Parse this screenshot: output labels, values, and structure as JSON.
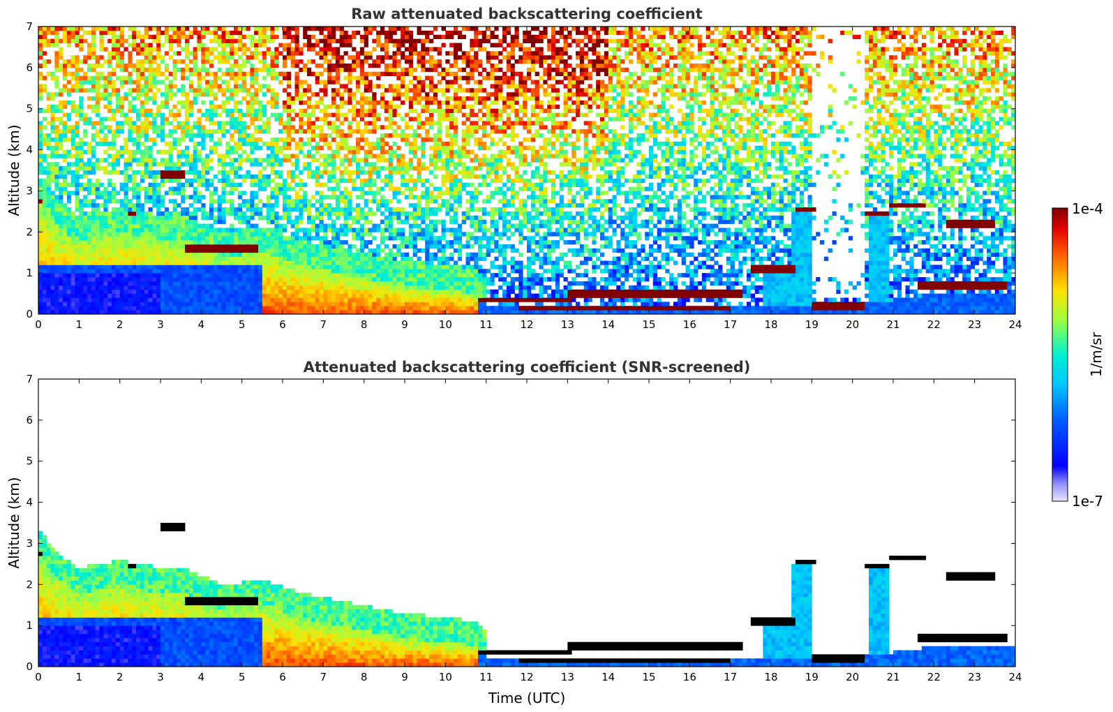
{
  "chart_data": [
    {
      "type": "heatmap",
      "title": "Raw attenuated backscattering coefficient",
      "xlabel": "",
      "ylabel": "Altitude (km)",
      "xlim": [
        0,
        24
      ],
      "ylim": [
        0,
        7
      ],
      "xticks": [
        "0",
        "1",
        "2",
        "3",
        "4",
        "5",
        "6",
        "7",
        "8",
        "9",
        "10",
        "11",
        "12",
        "13",
        "14",
        "15",
        "16",
        "17",
        "18",
        "19",
        "20",
        "21",
        "22",
        "23",
        "24"
      ],
      "yticks": [
        "0",
        "1",
        "2",
        "3",
        "4",
        "5",
        "6",
        "7"
      ],
      "screened": false,
      "features": {
        "boundary_layer_top": [
          [
            0,
            2.75
          ],
          [
            0.5,
            2.1
          ],
          [
            1,
            1.8
          ],
          [
            2,
            2.0
          ],
          [
            3,
            1.8
          ],
          [
            3.5,
            1.85
          ],
          [
            4.5,
            1.4
          ],
          [
            5.5,
            1.5
          ],
          [
            6.5,
            1.2
          ],
          [
            8,
            0.9
          ],
          [
            9,
            0.7
          ],
          [
            10,
            0.6
          ],
          [
            10.8,
            0.5
          ],
          [
            11,
            0.25
          ],
          [
            12,
            0.2
          ],
          [
            14,
            0.15
          ],
          [
            17,
            0.15
          ],
          [
            18,
            0.2
          ],
          [
            20,
            0.2
          ],
          [
            22,
            0.5
          ],
          [
            24,
            0.5
          ]
        ],
        "cloud_layers": [
          {
            "t0": 0.0,
            "t1": 0.15,
            "alt": 2.75
          },
          {
            "t0": 2.2,
            "t1": 2.35,
            "alt": 2.45
          },
          {
            "t0": 3.05,
            "t1": 3.6,
            "alt": 3.4
          },
          {
            "t0": 3.6,
            "t1": 5.4,
            "alt": 1.6
          },
          {
            "t0": 10.8,
            "t1": 13.1,
            "alt": 0.37
          },
          {
            "t0": 11.8,
            "t1": 17.0,
            "alt": 0.12
          },
          {
            "t0": 13.0,
            "t1": 17.3,
            "alt": 0.5
          },
          {
            "t0": 17.5,
            "t1": 18.6,
            "alt": 1.1
          },
          {
            "t0": 18.6,
            "t1": 19.05,
            "alt": 2.55
          },
          {
            "t0": 19.0,
            "t1": 20.3,
            "alt": 0.2
          },
          {
            "t0": 20.35,
            "t1": 20.85,
            "alt": 2.45
          },
          {
            "t0": 20.9,
            "t1": 21.8,
            "alt": 2.65
          },
          {
            "t0": 21.6,
            "t1": 23.8,
            "alt": 0.7
          },
          {
            "t0": 22.3,
            "t1": 23.5,
            "alt": 2.2
          }
        ]
      }
    },
    {
      "type": "heatmap",
      "title": "Attenuated backscattering coefficient (SNR-screened)",
      "xlabel": "Time (UTC)",
      "ylabel": "Altitude (km)",
      "xlim": [
        0,
        24
      ],
      "ylim": [
        0,
        7
      ],
      "xticks": [
        "0",
        "1",
        "2",
        "3",
        "4",
        "5",
        "6",
        "7",
        "8",
        "9",
        "10",
        "11",
        "12",
        "13",
        "14",
        "15",
        "16",
        "17",
        "18",
        "19",
        "20",
        "21",
        "22",
        "23",
        "24"
      ],
      "yticks": [
        "0",
        "1",
        "2",
        "3",
        "4",
        "5",
        "6",
        "7"
      ],
      "screened": true
    }
  ],
  "colorbar": {
    "max_label": "1e-4",
    "min_label": "1e-7",
    "unit_label": "1/m/sr",
    "scale": "log",
    "range": [
      1e-07,
      0.0001
    ],
    "colors": [
      "#e6e6fa",
      "#0000ff",
      "#00bfff",
      "#00ffd0",
      "#c8ff00",
      "#ffd000",
      "#ff4000",
      "#8b0000"
    ]
  }
}
